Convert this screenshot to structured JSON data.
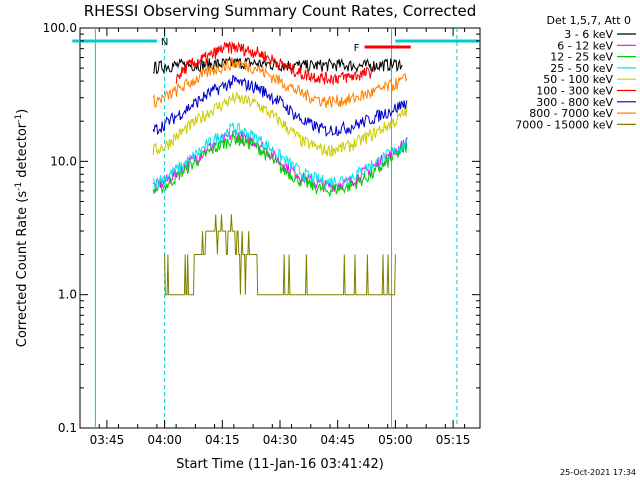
{
  "chart_data": {
    "type": "line",
    "title": "RHESSI Observing Summary Count Rates, Corrected",
    "xlabel": "Start Time (11-Jan-16 03:41:42)",
    "ylabel": "Corrected Count Rate (s",
    "ylabel_sup": "-1",
    "ylabel_tail": " detector",
    "ylabel_end": ")",
    "yscale": "log",
    "ylim": [
      0.1,
      100.0
    ],
    "y_ticks": [
      {
        "value": 0.1,
        "label": "0.1"
      },
      {
        "value": 1.0,
        "label": "1.0"
      },
      {
        "value": 10.0,
        "label": "10.0"
      },
      {
        "value": 100.0,
        "label": "100.0"
      }
    ],
    "xlim": [
      "03:38",
      "05:22"
    ],
    "x_ticks": [
      "03:45",
      "04:00",
      "04:15",
      "04:30",
      "04:45",
      "05:00",
      "05:15"
    ],
    "grid": false,
    "legend_header": "Det 1,5,7, Att 0",
    "legend_position": "right",
    "timestamp": "25-Oct-2021 17:34",
    "series": [
      {
        "name": "3 - 6 keV",
        "color": "#000000",
        "values": [
          [
            3.95,
            50
          ],
          [
            4.0,
            52
          ],
          [
            4.15,
            53
          ],
          [
            4.25,
            54
          ],
          [
            4.35,
            55
          ],
          [
            4.5,
            53
          ],
          [
            4.6,
            52
          ],
          [
            4.75,
            53
          ],
          [
            4.85,
            52
          ],
          [
            4.95,
            53
          ],
          [
            5.03,
            54
          ]
        ]
      },
      {
        "name": "6 - 12 keV",
        "color": "#ff00ff",
        "values": [
          [
            3.95,
            6.5
          ],
          [
            4.0,
            7.0
          ],
          [
            4.1,
            9.5
          ],
          [
            4.2,
            13
          ],
          [
            4.3,
            16
          ],
          [
            4.4,
            14
          ],
          [
            4.5,
            10
          ],
          [
            4.6,
            7.5
          ],
          [
            4.7,
            6.5
          ],
          [
            4.8,
            7.0
          ],
          [
            4.9,
            9.0
          ],
          [
            5.0,
            12
          ],
          [
            5.05,
            14
          ]
        ]
      },
      {
        "name": "12 - 25 keV",
        "color": "#00cc00",
        "values": [
          [
            3.95,
            6.0
          ],
          [
            4.0,
            6.5
          ],
          [
            4.1,
            9.0
          ],
          [
            4.2,
            12
          ],
          [
            4.3,
            15
          ],
          [
            4.4,
            13
          ],
          [
            4.5,
            9.0
          ],
          [
            4.6,
            7.0
          ],
          [
            4.7,
            6.0
          ],
          [
            4.8,
            6.5
          ],
          [
            4.9,
            8.0
          ],
          [
            5.0,
            11
          ],
          [
            5.05,
            13
          ]
        ]
      },
      {
        "name": "25 - 50 keV",
        "color": "#00e5e5",
        "values": [
          [
            3.95,
            7.0
          ],
          [
            4.0,
            7.5
          ],
          [
            4.1,
            10
          ],
          [
            4.2,
            14
          ],
          [
            4.3,
            18
          ],
          [
            4.4,
            15
          ],
          [
            4.5,
            11
          ],
          [
            4.6,
            8.0
          ],
          [
            4.7,
            7.0
          ],
          [
            4.8,
            7.5
          ],
          [
            4.9,
            9.5
          ],
          [
            5.0,
            12
          ],
          [
            5.05,
            14
          ]
        ]
      },
      {
        "name": "50 - 100 keV",
        "color": "#cccc00",
        "values": [
          [
            3.95,
            12
          ],
          [
            4.0,
            13
          ],
          [
            4.1,
            18
          ],
          [
            4.2,
            24
          ],
          [
            4.3,
            30
          ],
          [
            4.4,
            27
          ],
          [
            4.5,
            20
          ],
          [
            4.6,
            14
          ],
          [
            4.7,
            12
          ],
          [
            4.8,
            13
          ],
          [
            4.9,
            16
          ],
          [
            5.0,
            20
          ],
          [
            5.05,
            24
          ]
        ]
      },
      {
        "name": "100 - 300 keV",
        "color": "#ff0000",
        "values": [
          [
            4.05,
            42
          ],
          [
            4.1,
            52
          ],
          [
            4.2,
            62
          ],
          [
            4.25,
            70
          ],
          [
            4.3,
            72
          ],
          [
            4.4,
            66
          ],
          [
            4.5,
            54
          ],
          [
            4.6,
            45
          ],
          [
            4.7,
            42
          ],
          [
            4.8,
            43
          ],
          [
            4.9,
            47
          ]
        ]
      },
      {
        "name": "300 - 800 keV",
        "color": "#0000cc",
        "values": [
          [
            3.95,
            17
          ],
          [
            4.0,
            19
          ],
          [
            4.1,
            25
          ],
          [
            4.2,
            33
          ],
          [
            4.3,
            40
          ],
          [
            4.4,
            36
          ],
          [
            4.5,
            28
          ],
          [
            4.6,
            20
          ],
          [
            4.7,
            17
          ],
          [
            4.8,
            18
          ],
          [
            4.9,
            21
          ],
          [
            5.0,
            25
          ],
          [
            5.05,
            28
          ]
        ]
      },
      {
        "name": "800 - 7000 keV",
        "color": "#ff8000",
        "values": [
          [
            3.95,
            28
          ],
          [
            4.0,
            30
          ],
          [
            4.1,
            38
          ],
          [
            4.2,
            48
          ],
          [
            4.3,
            55
          ],
          [
            4.4,
            50
          ],
          [
            4.5,
            40
          ],
          [
            4.6,
            32
          ],
          [
            4.7,
            28
          ],
          [
            4.8,
            29
          ],
          [
            4.9,
            33
          ],
          [
            5.0,
            38
          ],
          [
            5.05,
            42
          ]
        ]
      },
      {
        "name": "7000 - 15000 keV",
        "color": "#808000",
        "values": [
          [
            4.0,
            1.0
          ],
          [
            4.1,
            1.0
          ],
          [
            4.15,
            2.0
          ],
          [
            4.2,
            3.0
          ],
          [
            4.25,
            3.0
          ],
          [
            4.3,
            2.5
          ],
          [
            4.35,
            2.0
          ],
          [
            4.4,
            1.5
          ],
          [
            4.45,
            1.0
          ],
          [
            4.55,
            1.0
          ],
          [
            4.7,
            1.0
          ],
          [
            4.85,
            1.0
          ],
          [
            4.95,
            1.0
          ],
          [
            5.0,
            1.5
          ]
        ]
      }
    ],
    "flag_N": {
      "label": "N",
      "color": "#00cccc",
      "segments": [
        [
          "03:36",
          "03:58"
        ],
        [
          "05:00",
          "05:22"
        ]
      ]
    },
    "flag_F": {
      "label": "F",
      "color": "#ff0000",
      "segment": [
        "04:52",
        "05:04"
      ]
    },
    "vlines": [
      {
        "time": "03:42",
        "style": "solid",
        "color": "#00cccc"
      },
      {
        "time": "04:00",
        "style": "dashed",
        "color": "#00cccc"
      },
      {
        "time": "04:59",
        "style": "solid",
        "color": "#00cccc"
      },
      {
        "time": "05:16",
        "style": "dashed",
        "color": "#00cccc"
      }
    ]
  }
}
